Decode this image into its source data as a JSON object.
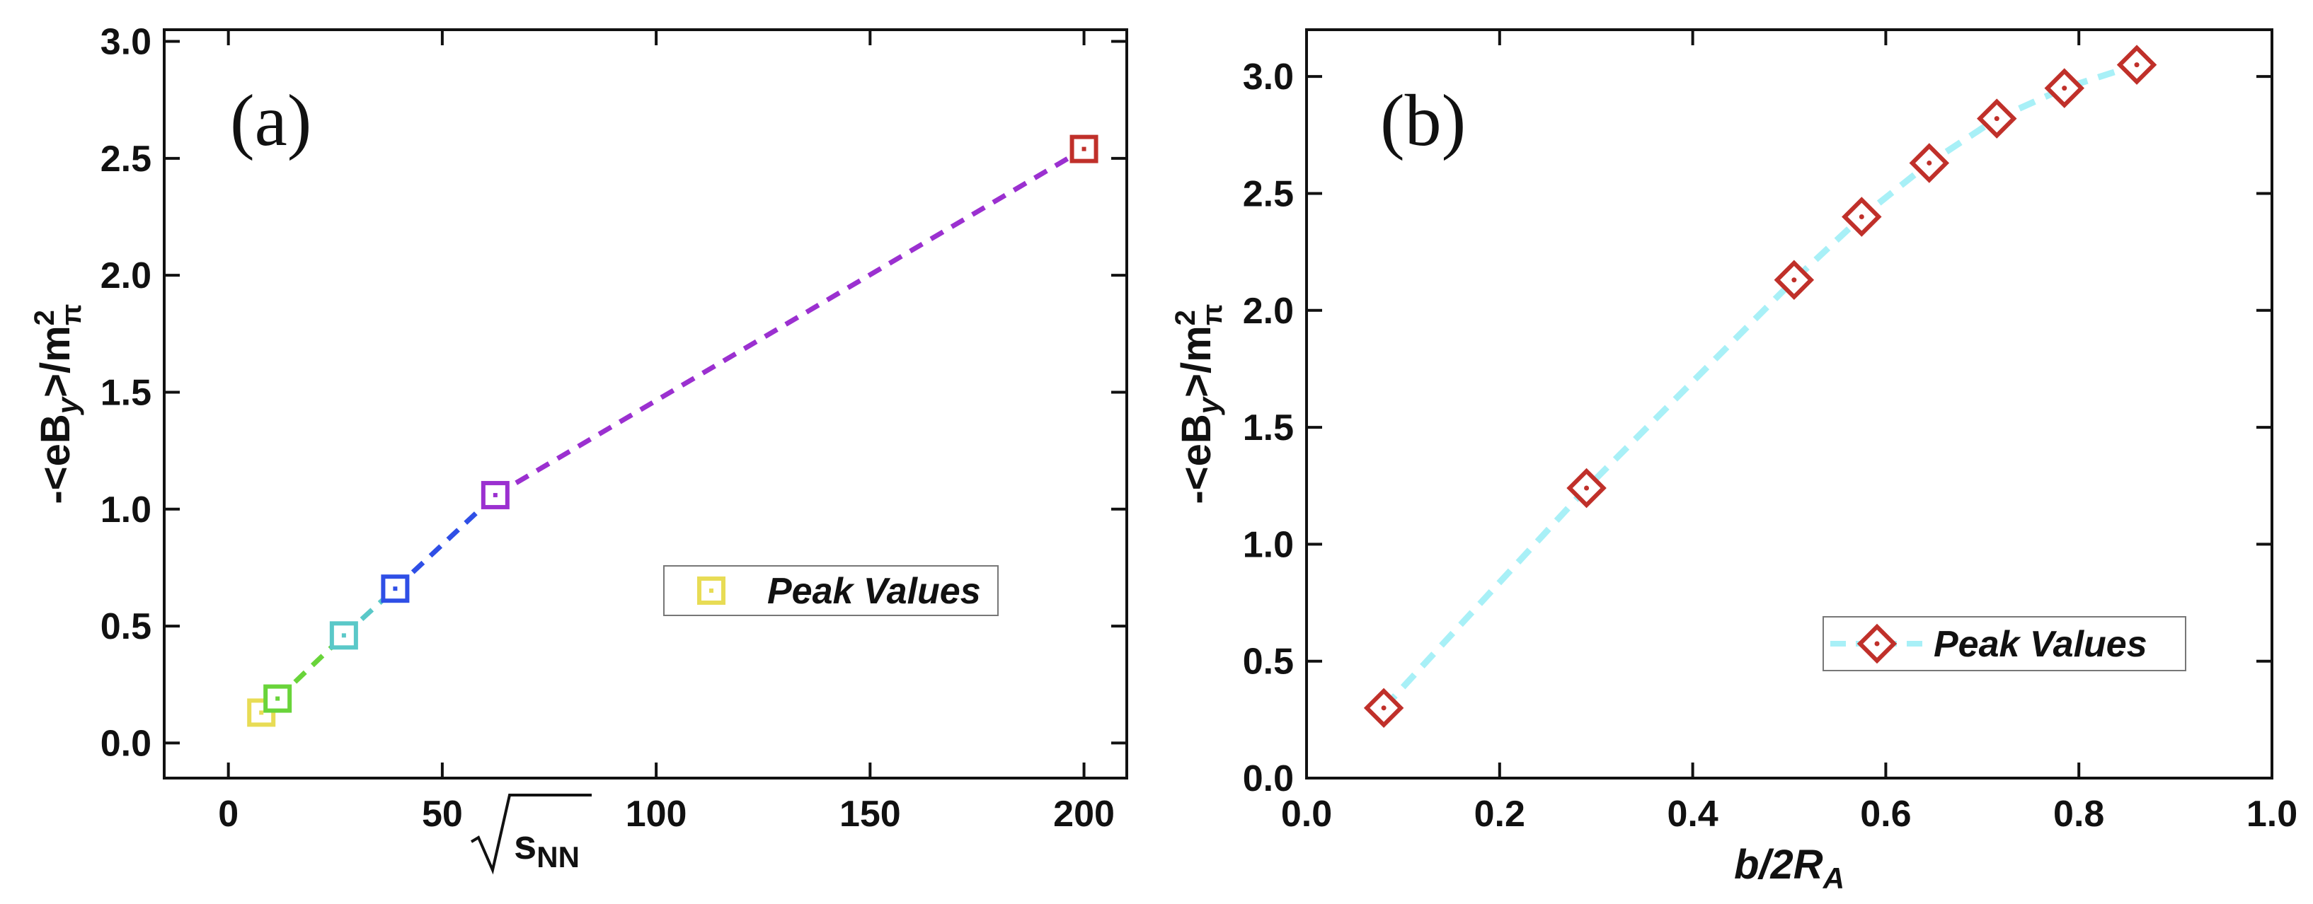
{
  "chart_data": [
    {
      "type": "line",
      "panel_label": "(a)",
      "xlabel": "√s_NN",
      "xlabel_base": "s",
      "xlabel_sub": "NN",
      "ylabel": "-<eB_y>/m_π^2",
      "xlim": [
        -15,
        210
      ],
      "ylim": [
        -0.15,
        3.05
      ],
      "xticks": [
        0,
        50,
        100,
        150,
        200
      ],
      "xtick_labels": [
        "0",
        "50",
        "100",
        "150",
        "200"
      ],
      "yticks": [
        0.0,
        0.5,
        1.0,
        1.5,
        2.0,
        2.5,
        3.0
      ],
      "ytick_labels": [
        "0.0",
        "0.5",
        "1.0",
        "1.5",
        "2.0",
        "2.5",
        "3.0"
      ],
      "series": [
        {
          "name": "Peak Values",
          "marker": "square",
          "line_style": "dashed",
          "x": [
            7.7,
            11.5,
            27,
            39,
            62.4,
            200
          ],
          "y": [
            0.13,
            0.19,
            0.46,
            0.66,
            1.06,
            2.54
          ],
          "point_colors": [
            "#e8dc55",
            "#69d43a",
            "#5ac8c8",
            "#2f4fe6",
            "#9b30d0",
            "#c0302a"
          ],
          "segment_colors": [
            "#e8dc55",
            "#69d43a",
            "#5ac8c8",
            "#2f4fe6",
            "#9b30d0"
          ]
        }
      ],
      "legend": {
        "position": "center-right",
        "label": "Peak Values",
        "color": "#e8dc55"
      }
    },
    {
      "type": "line",
      "panel_label": "(b)",
      "xlabel": "b/2R_A",
      "xlabel_base": "b/2R",
      "xlabel_sub": "A",
      "ylabel": "-<eB_y>/m_π^2",
      "xlim": [
        0.0,
        1.0
      ],
      "ylim": [
        0.0,
        3.2
      ],
      "xticks": [
        0.0,
        0.2,
        0.4,
        0.6,
        0.8,
        1.0
      ],
      "xtick_labels": [
        "0.0",
        "0.2",
        "0.4",
        "0.6",
        "0.8",
        "1.0"
      ],
      "yticks": [
        0.0,
        0.5,
        1.0,
        1.5,
        2.0,
        2.5,
        3.0
      ],
      "ytick_labels": [
        "0.0",
        "0.5",
        "1.0",
        "1.5",
        "2.0",
        "2.5",
        "3.0"
      ],
      "series": [
        {
          "name": "Peak Values",
          "marker": "diamond",
          "line_style": "dashed",
          "x": [
            0.08,
            0.29,
            0.505,
            0.575,
            0.645,
            0.715,
            0.785,
            0.86
          ],
          "y": [
            0.3,
            1.24,
            2.13,
            2.4,
            2.63,
            2.82,
            2.95,
            3.05
          ],
          "marker_color": "#c0302a",
          "line_color": "#a8f0f7"
        }
      ],
      "legend": {
        "position": "bottom-right",
        "label": "Peak Values",
        "color": "#c0302a",
        "line_color": "#a8f0f7"
      }
    }
  ]
}
